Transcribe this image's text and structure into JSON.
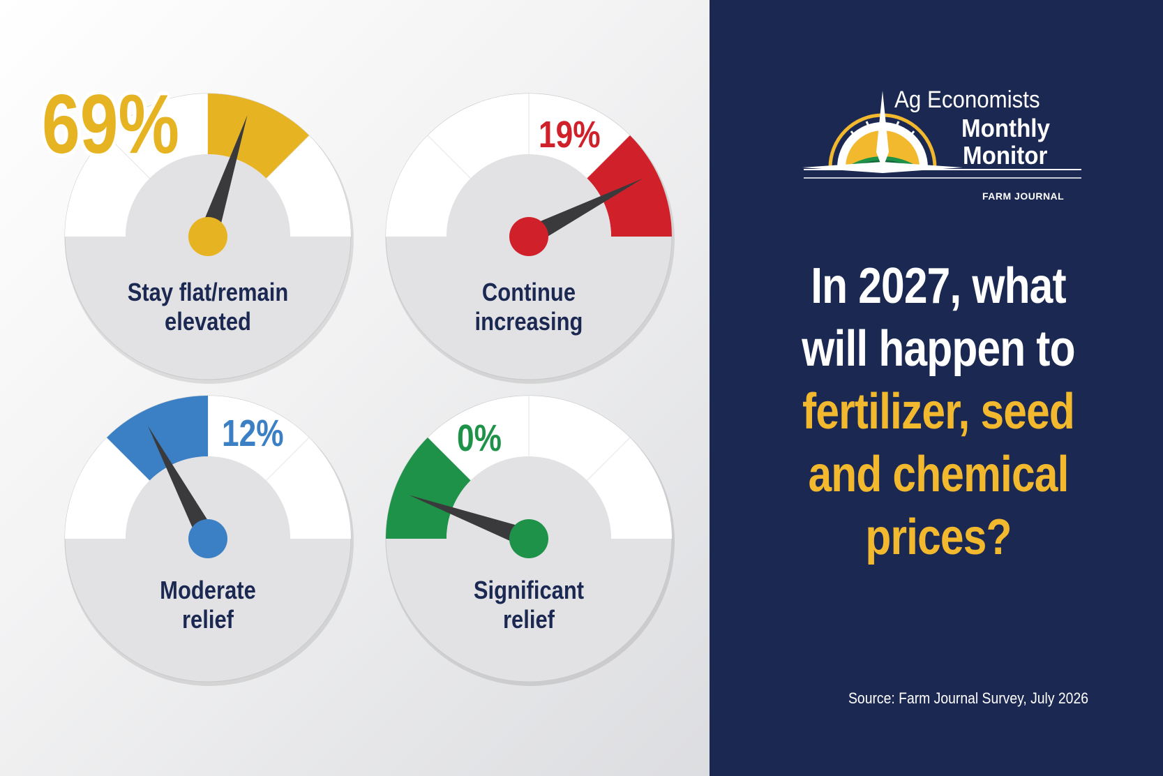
{
  "chart_data": {
    "type": "gauge",
    "question": {
      "line1": "In 2027, what",
      "line2": "will happen to",
      "line3": "fertilizer, seed",
      "line4": "and chemical",
      "line5": "prices?"
    },
    "source": "Source: Farm Journal Survey, July 2026",
    "gauges": [
      {
        "label_line1": "Stay flat/remain",
        "label_line2": "elevated",
        "value": 69,
        "display": "69%",
        "color": "#e6b422"
      },
      {
        "label_line1": "Continue",
        "label_line2": "increasing",
        "value": 19,
        "display": "19%",
        "color": "#d0202a"
      },
      {
        "label_line1": "Moderate",
        "label_line2": "relief",
        "value": 12,
        "display": "12%",
        "color": "#3b7fc4"
      },
      {
        "label_line1": "Significant",
        "label_line2": "relief",
        "value": 0,
        "display": "0%",
        "color": "#1e9248"
      }
    ]
  },
  "logo": {
    "line1": "Ag Economists",
    "line2": "Monthly",
    "line3": "Monitor",
    "brand": "FARM JOURNAL"
  },
  "colors": {
    "navy": "#1b2852",
    "gold": "#f2b92f",
    "gauge_face": "#e2e2e4",
    "gauge_ring": "#ffffff"
  }
}
